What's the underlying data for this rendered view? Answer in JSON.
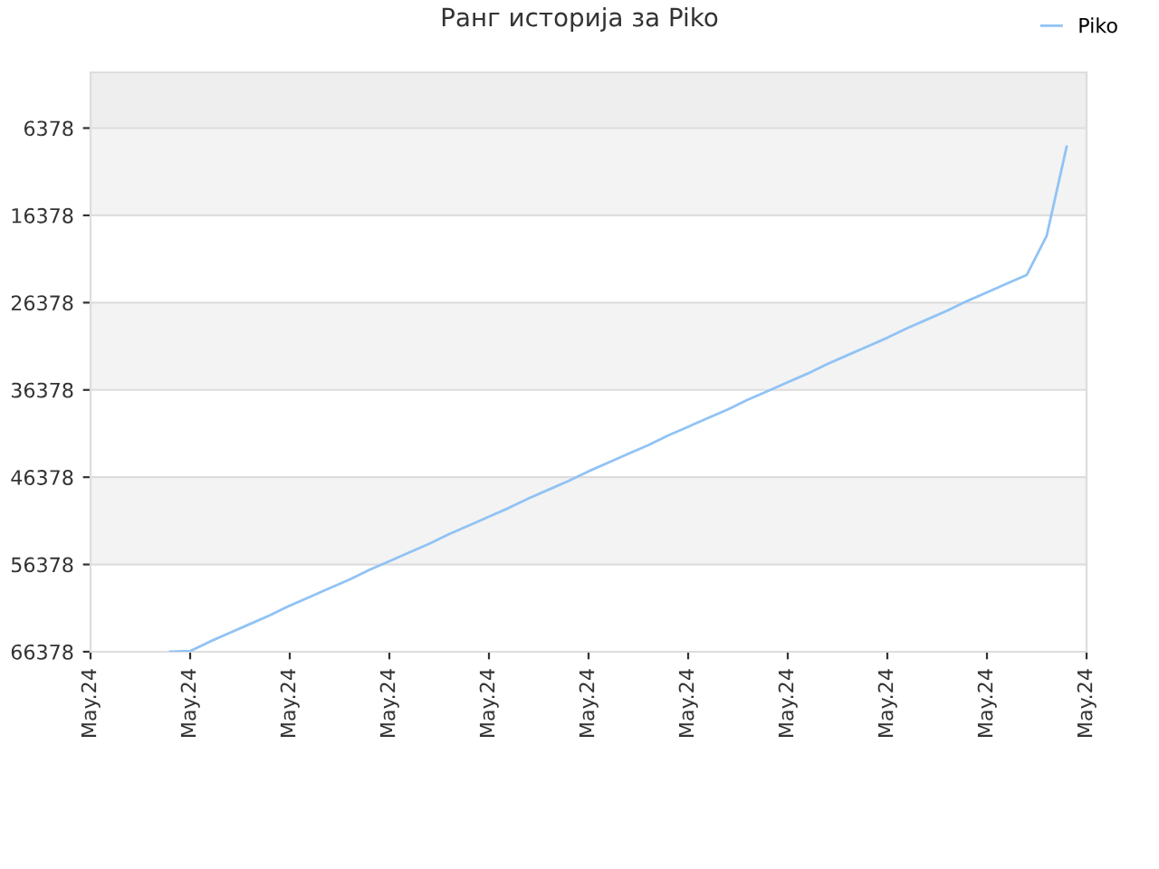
{
  "chart_data": {
    "type": "line",
    "title": "Ранг историја за Piko",
    "categories": [
      "May.24",
      null,
      null,
      null,
      null,
      "May.24",
      null,
      null,
      null,
      null,
      "May.24",
      null,
      null,
      null,
      null,
      "May.24",
      null,
      null,
      null,
      null,
      "May.24",
      null,
      null,
      null,
      null,
      "May.24",
      null,
      null,
      null,
      null,
      "May.24",
      null,
      null,
      null,
      null,
      "May.24",
      null,
      null,
      null,
      null,
      "May.24",
      null,
      null,
      null,
      null,
      "May.24",
      null,
      null,
      null,
      null,
      "May.24"
    ],
    "series": [
      {
        "name": "Piko",
        "color": "#90c3f5",
        "values": [
          null,
          null,
          null,
          null,
          66378,
          66300,
          65200,
          64200,
          63200,
          62200,
          61100,
          60100,
          59100,
          58100,
          57000,
          56000,
          55000,
          54000,
          52900,
          51900,
          50900,
          49900,
          48800,
          47800,
          46800,
          45700,
          44700,
          43700,
          42700,
          41600,
          40600,
          39600,
          38600,
          37500,
          36500,
          35500,
          34500,
          33400,
          32400,
          31400,
          30400,
          29300,
          28300,
          27300,
          26200,
          25200,
          24200,
          23200,
          18700,
          8500,
          null
        ]
      }
    ],
    "ylim": [
      66378,
      0
    ],
    "yticks": [
      6378,
      16378,
      26378,
      36378,
      46378,
      56378,
      66378
    ],
    "bands": [
      {
        "axis": "y",
        "from": 6378,
        "to": 0,
        "color": "#eeeeee"
      },
      {
        "axis": "y",
        "from": 16378,
        "to": 6378,
        "color": "#f3f3f3"
      },
      {
        "axis": "y",
        "from": 36378,
        "to": 26378,
        "color": "#f3f3f3"
      },
      {
        "axis": "y",
        "from": 56378,
        "to": 46378,
        "color": "#f3f3f3"
      }
    ],
    "grid": "y",
    "legend": "top right",
    "marker": "none",
    "line_style": "solid"
  }
}
